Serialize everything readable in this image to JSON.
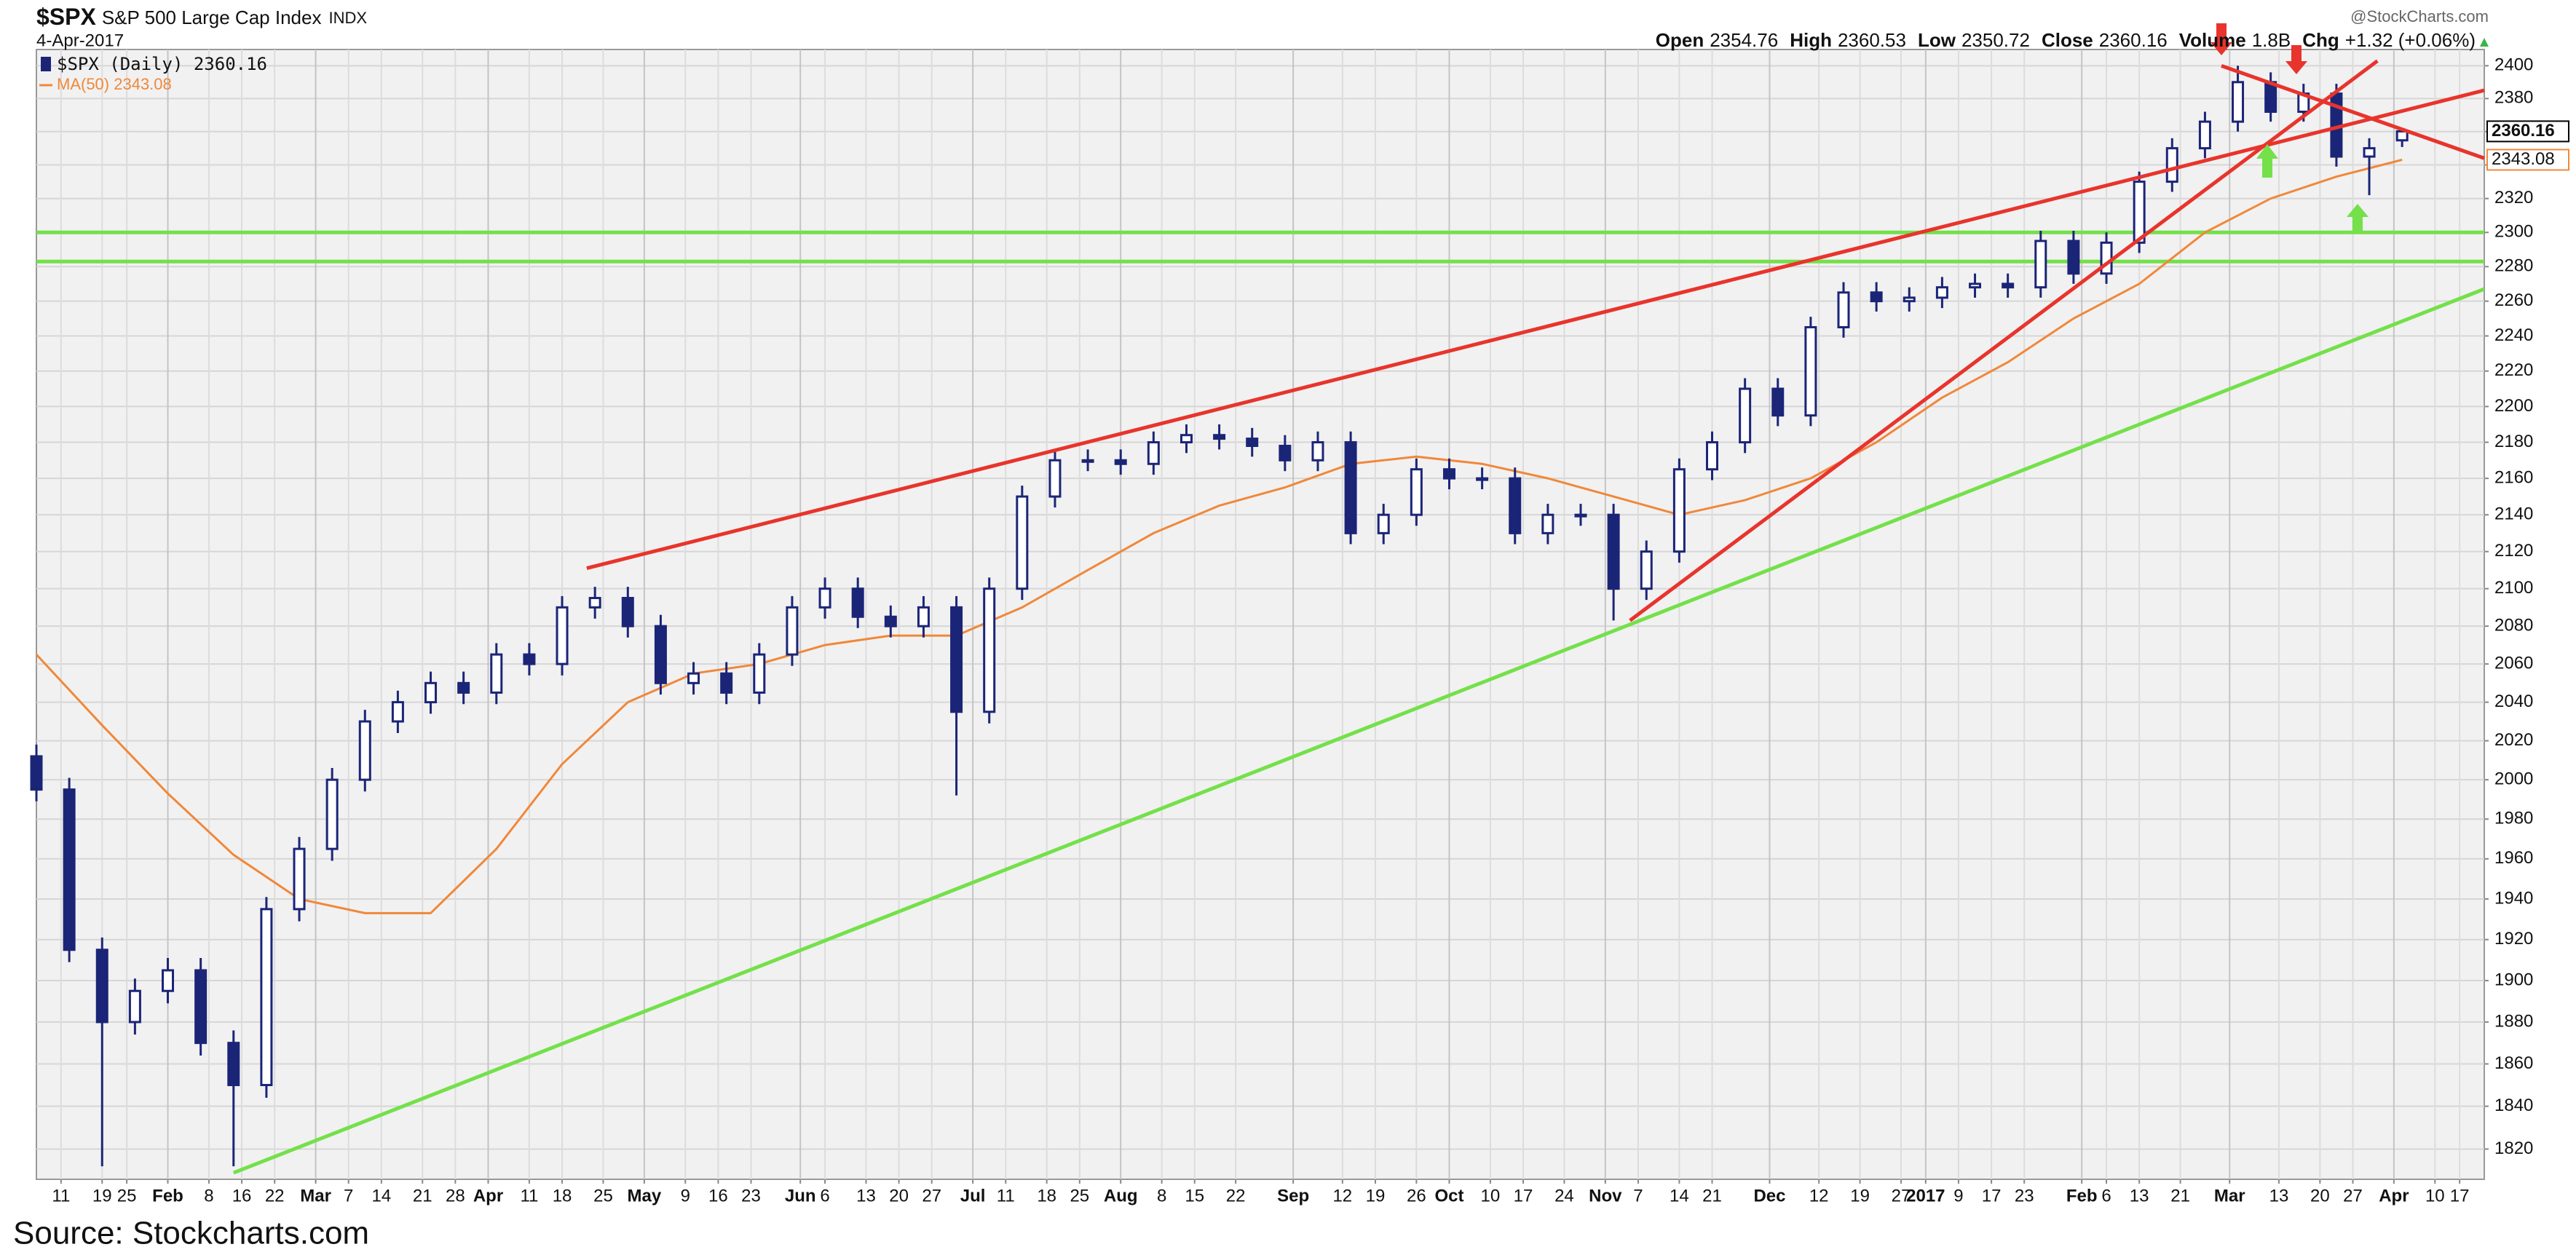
{
  "chart_data": {
    "type": "candlestick",
    "symbol": "$SPX",
    "name": "S&P 500 Large Cap Index",
    "exchange": "INDX",
    "date": "4-Apr-2017",
    "watermark": "@StockCharts.com",
    "stats": {
      "open_label": "Open",
      "high_label": "High",
      "low_label": "Low",
      "close_label": "Close",
      "volume_label": "Volume",
      "volume": "1.8B",
      "change_label": "Chg",
      "change": "+1.32 (+0.06%)"
    },
    "series": [
      {
        "name": "$SPX (Daily) 2360.16",
        "color": "#1b2577",
        "x": [
          0,
          4,
          8,
          12,
          16,
          20,
          24,
          28,
          32,
          36,
          40,
          44,
          48,
          52,
          56,
          60,
          64,
          68,
          72,
          76,
          80,
          84,
          88,
          92,
          96,
          100,
          104,
          108,
          112,
          116,
          120,
          124,
          128,
          132,
          136,
          140,
          144,
          148,
          152,
          156,
          160,
          164,
          168,
          172,
          176,
          180,
          184,
          188,
          192,
          196,
          200,
          204,
          208,
          212,
          216,
          220,
          224,
          228,
          232,
          236,
          240,
          244,
          248,
          252,
          256,
          260,
          264,
          268,
          272,
          276,
          280,
          284,
          288
        ],
        "open": [
          2012,
          1995,
          1915,
          1880,
          1895,
          1905,
          1870,
          1850,
          1935,
          1965,
          2000,
          2030,
          2040,
          2050,
          2045,
          2065,
          2060,
          2090,
          2095,
          2080,
          2050,
          2055,
          2045,
          2065,
          2090,
          2100,
          2085,
          2080,
          2090,
          2035,
          2100,
          2150,
          2170,
          2170,
          2168,
          2180,
          2184,
          2182,
          2178,
          2170,
          2180,
          2130,
          2140,
          2165,
          2160,
          2160,
          2130,
          2140,
          2140,
          2100,
          2120,
          2165,
          2180,
          2210,
          2195,
          2245,
          2265,
          2260,
          2262,
          2268,
          2270,
          2268,
          2295,
          2276,
          2294,
          2330,
          2350,
          2366,
          2390,
          2372,
          2383,
          2345,
          2354.76
        ],
        "high": [
          2018,
          2001,
          1921,
          1901,
          1911,
          1911,
          1876,
          1941,
          1971,
          2006,
          2036,
          2046,
          2056,
          2056,
          2071,
          2071,
          2096,
          2101,
          2101,
          2086,
          2061,
          2061,
          2071,
          2096,
          2106,
          2106,
          2091,
          2096,
          2096,
          2106,
          2156,
          2176,
          2176,
          2176,
          2186,
          2190,
          2190,
          2188,
          2184,
          2186,
          2186,
          2146,
          2171,
          2171,
          2166,
          2166,
          2146,
          2146,
          2146,
          2126,
          2171,
          2186,
          2216,
          2216,
          2251,
          2271,
          2271,
          2268,
          2274,
          2276,
          2276,
          2301,
          2301,
          2300,
          2336,
          2356,
          2372,
          2400,
          2396,
          2389,
          2389,
          2356,
          2360.53
        ],
        "low": [
          1989,
          1909,
          1812,
          1874,
          1889,
          1864,
          1812,
          1844,
          1929,
          1959,
          1994,
          2024,
          2034,
          2039,
          2039,
          2054,
          2054,
          2084,
          2074,
          2044,
          2044,
          2039,
          2039,
          2059,
          2084,
          2079,
          2074,
          2074,
          1992,
          2029,
          2094,
          2144,
          2164,
          2162,
          2162,
          2174,
          2176,
          2172,
          2164,
          2164,
          2124,
          2124,
          2134,
          2154,
          2154,
          2124,
          2124,
          2134,
          2083,
          2094,
          2114,
          2159,
          2174,
          2189,
          2189,
          2239,
          2254,
          2254,
          2256,
          2262,
          2262,
          2262,
          2270,
          2270,
          2288,
          2324,
          2344,
          2360,
          2366,
          2366,
          2339,
          2322,
          2350.72
        ],
        "close": [
          1995,
          1915,
          1880,
          1895,
          1905,
          1870,
          1850,
          1935,
          1965,
          2000,
          2030,
          2040,
          2050,
          2045,
          2065,
          2060,
          2090,
          2095,
          2080,
          2050,
          2055,
          2045,
          2065,
          2090,
          2100,
          2085,
          2080,
          2090,
          2035,
          2100,
          2150,
          2170,
          2170,
          2168,
          2180,
          2184,
          2182,
          2178,
          2170,
          2180,
          2130,
          2140,
          2165,
          2160,
          2160,
          2130,
          2140,
          2140,
          2100,
          2120,
          2165,
          2180,
          2210,
          2195,
          2245,
          2265,
          2260,
          2262,
          2268,
          2270,
          2268,
          2295,
          2276,
          2294,
          2330,
          2350,
          2366,
          2390,
          2372,
          2383,
          2345,
          2350,
          2360.16
        ]
      },
      {
        "name": "MA(50) 2343.08",
        "type": "line",
        "color": "#f0883a",
        "x": [
          0,
          8,
          16,
          24,
          32,
          40,
          48,
          56,
          64,
          72,
          80,
          88,
          96,
          104,
          112,
          120,
          128,
          136,
          144,
          152,
          160,
          168,
          176,
          184,
          192,
          200,
          208,
          216,
          224,
          232,
          240,
          248,
          256,
          264,
          272,
          280,
          288
        ],
        "values": [
          2065,
          2028,
          1993,
          1962,
          1940,
          1933,
          1933,
          1965,
          2008,
          2040,
          2055,
          2060,
          2070,
          2075,
          2075,
          2090,
          2110,
          2130,
          2145,
          2155,
          2168,
          2172,
          2168,
          2160,
          2150,
          2140,
          2148,
          2160,
          2180,
          2205,
          2225,
          2250,
          2270,
          2300,
          2320,
          2333,
          2343.08
        ]
      }
    ],
    "trendlines": [
      {
        "color": "#e8342c",
        "x": [
          67,
          298
        ],
        "values": [
          2111,
          2385
        ]
      },
      {
        "color": "#e8342c",
        "x": [
          194,
          285
        ],
        "values": [
          2083,
          2403
        ]
      },
      {
        "color": "#e8342c",
        "x": [
          266,
          298
        ],
        "values": [
          2400,
          2344
        ]
      },
      {
        "color": "#74e04a",
        "x": [
          24,
          298
        ],
        "values": [
          1809,
          2267
        ]
      }
    ],
    "hlines": [
      {
        "color": "#74e04a",
        "value": 2300
      },
      {
        "color": "#74e04a",
        "value": 2283
      }
    ],
    "xlim": [
      0,
      298
    ],
    "xticks": [
      {
        "value": 3,
        "label": "11"
      },
      {
        "value": 8,
        "label": "19"
      },
      {
        "value": 11,
        "label": "25"
      },
      {
        "value": 16,
        "label": "Feb"
      },
      {
        "value": 21,
        "label": "8"
      },
      {
        "value": 25,
        "label": "16"
      },
      {
        "value": 29,
        "label": "22"
      },
      {
        "value": 34,
        "label": "Mar"
      },
      {
        "value": 38,
        "label": "7"
      },
      {
        "value": 42,
        "label": "14"
      },
      {
        "value": 47,
        "label": "21"
      },
      {
        "value": 51,
        "label": "28"
      },
      {
        "value": 55,
        "label": "Apr"
      },
      {
        "value": 60,
        "label": "11"
      },
      {
        "value": 64,
        "label": "18"
      },
      {
        "value": 69,
        "label": "25"
      },
      {
        "value": 74,
        "label": "May"
      },
      {
        "value": 79,
        "label": "9"
      },
      {
        "value": 83,
        "label": "16"
      },
      {
        "value": 87,
        "label": "23"
      },
      {
        "value": 93,
        "label": "Jun"
      },
      {
        "value": 96,
        "label": "6"
      },
      {
        "value": 101,
        "label": "13"
      },
      {
        "value": 105,
        "label": "20"
      },
      {
        "value": 109,
        "label": "27"
      },
      {
        "value": 114,
        "label": "Jul"
      },
      {
        "value": 118,
        "label": "11"
      },
      {
        "value": 123,
        "label": "18"
      },
      {
        "value": 127,
        "label": "25"
      },
      {
        "value": 132,
        "label": "Aug"
      },
      {
        "value": 137,
        "label": "8"
      },
      {
        "value": 141,
        "label": "15"
      },
      {
        "value": 146,
        "label": "22"
      },
      {
        "value": 153,
        "label": "Sep"
      },
      {
        "value": 159,
        "label": "12"
      },
      {
        "value": 163,
        "label": "19"
      },
      {
        "value": 168,
        "label": "26"
      },
      {
        "value": 172,
        "label": "Oct"
      },
      {
        "value": 177,
        "label": "10"
      },
      {
        "value": 181,
        "label": "17"
      },
      {
        "value": 186,
        "label": "24"
      },
      {
        "value": 191,
        "label": "Nov"
      },
      {
        "value": 195,
        "label": "7"
      },
      {
        "value": 200,
        "label": "14"
      },
      {
        "value": 204,
        "label": "21"
      },
      {
        "value": 211,
        "label": "Dec"
      },
      {
        "value": 217,
        "label": "12"
      },
      {
        "value": 222,
        "label": "19"
      },
      {
        "value": 227,
        "label": "27"
      },
      {
        "value": 230,
        "label": "2017"
      },
      {
        "value": 234,
        "label": "9"
      },
      {
        "value": 238,
        "label": "17"
      },
      {
        "value": 242,
        "label": "23"
      },
      {
        "value": 249,
        "label": "Feb"
      },
      {
        "value": 252,
        "label": "6"
      },
      {
        "value": 256,
        "label": "13"
      },
      {
        "value": 261,
        "label": "21"
      },
      {
        "value": 267,
        "label": "Mar"
      },
      {
        "value": 273,
        "label": "13"
      },
      {
        "value": 278,
        "label": "20"
      },
      {
        "value": 282,
        "label": "27"
      },
      {
        "value": 287,
        "label": "Apr"
      },
      {
        "value": 292,
        "label": "10"
      },
      {
        "value": 295,
        "label": "17"
      }
    ],
    "ylim": [
      1806,
      2410
    ],
    "yticks": [
      1820,
      1840,
      1860,
      1880,
      1900,
      1920,
      1940,
      1960,
      1980,
      2000,
      2020,
      2040,
      2060,
      2080,
      2100,
      2120,
      2140,
      2160,
      2180,
      2200,
      2220,
      2240,
      2260,
      2280,
      2300,
      2320,
      2340,
      2360,
      2380,
      2400
    ],
    "log": true,
    "grid": true,
    "source": "Source: Stockcharts.com"
  }
}
